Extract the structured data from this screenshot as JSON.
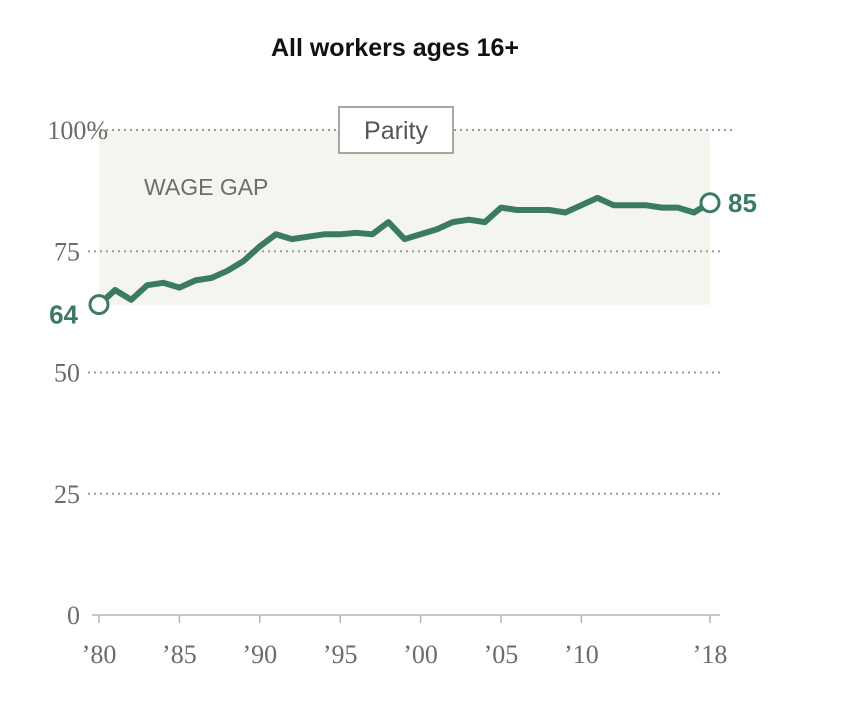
{
  "chart_data": {
    "type": "line",
    "title": "All workers ages 16+",
    "xlabel": "",
    "ylabel": "",
    "xlim": [
      1980,
      2018
    ],
    "ylim": [
      0,
      100
    ],
    "y_ticks": [
      {
        "value": 0,
        "label": "0"
      },
      {
        "value": 25,
        "label": "25"
      },
      {
        "value": 50,
        "label": "50"
      },
      {
        "value": 75,
        "label": "75"
      },
      {
        "value": 100,
        "label": "100%"
      }
    ],
    "x_ticks": [
      {
        "value": 1980,
        "label": "’80"
      },
      {
        "value": 1985,
        "label": "’85"
      },
      {
        "value": 1990,
        "label": "’90"
      },
      {
        "value": 1995,
        "label": "’95"
      },
      {
        "value": 2000,
        "label": "’00"
      },
      {
        "value": 2005,
        "label": "’05"
      },
      {
        "value": 2010,
        "label": "’10"
      },
      {
        "value": 2018,
        "label": "’18"
      }
    ],
    "grid": "horizontal-dotted",
    "parity_label": "Parity",
    "gap_label": "WAGE GAP",
    "series": [
      {
        "color": "#3b7a63",
        "x": [
          1980,
          1981,
          1982,
          1983,
          1984,
          1985,
          1986,
          1987,
          1988,
          1989,
          1990,
          1991,
          1992,
          1993,
          1994,
          1995,
          1996,
          1997,
          1998,
          1999,
          2000,
          2001,
          2002,
          2003,
          2004,
          2005,
          2006,
          2007,
          2008,
          2009,
          2010,
          2011,
          2012,
          2013,
          2014,
          2015,
          2016,
          2017,
          2018
        ],
        "y": [
          64,
          67,
          65,
          68,
          68.5,
          67.5,
          69,
          69.5,
          71,
          73,
          76,
          78.5,
          77.5,
          78,
          78.5,
          78.5,
          78.8,
          78.5,
          81,
          77.5,
          78.5,
          79.5,
          81,
          81.5,
          81,
          84,
          83.5,
          83.5,
          83.5,
          83,
          84.5,
          86,
          84.5,
          84.5,
          84.5,
          84,
          84,
          83,
          85
        ],
        "start_label": "64",
        "end_label": "85"
      }
    ]
  }
}
